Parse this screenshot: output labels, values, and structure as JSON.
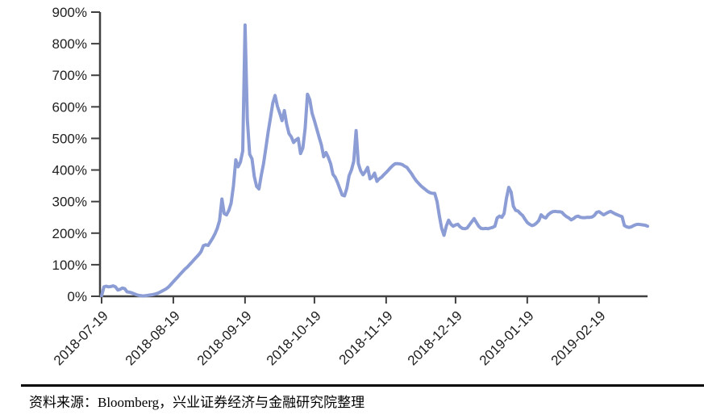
{
  "chart_data": {
    "type": "line",
    "title": "",
    "xlabel": "",
    "ylabel": "",
    "grid": false,
    "legend": "none",
    "y_axis": {
      "range": [
        0,
        900
      ],
      "tick_values": [
        0,
        100,
        200,
        300,
        400,
        500,
        600,
        700,
        800,
        900
      ],
      "tick_labels": [
        "0%",
        "100%",
        "200%",
        "300%",
        "400%",
        "500%",
        "600%",
        "700%",
        "800%",
        "900%"
      ]
    },
    "x_axis": {
      "start_date": "2018-07-19",
      "sampling": "daily",
      "tick_labels": [
        "2018-07-19",
        "2018-08-19",
        "2018-09-19",
        "2018-10-19",
        "2018-11-19",
        "2018-12-19",
        "2019-01-19",
        "2019-02-19"
      ],
      "tick_day_offsets": [
        0,
        31,
        62,
        92,
        123,
        153,
        184,
        215
      ]
    },
    "series": [
      {
        "name": "",
        "unit": "percent",
        "color": "#8C9DD6",
        "values": [
          2,
          30,
          32,
          30,
          31,
          33,
          30,
          20,
          22,
          26,
          24,
          14,
          13,
          11,
          8,
          5,
          3,
          2,
          1,
          2,
          3,
          4,
          5,
          7,
          9,
          12,
          16,
          20,
          24,
          30,
          38,
          46,
          54,
          62,
          70,
          78,
          86,
          92,
          100,
          108,
          116,
          124,
          132,
          142,
          160,
          163,
          161,
          172,
          184,
          198,
          215,
          240,
          308,
          262,
          258,
          272,
          295,
          350,
          432,
          410,
          425,
          460,
          859,
          560,
          450,
          435,
          380,
          348,
          340,
          382,
          420,
          470,
          520,
          565,
          612,
          636,
          602,
          580,
          556,
          588,
          545,
          515,
          505,
          487,
          495,
          500,
          452,
          470,
          532,
          640,
          622,
          580,
          556,
          530,
          504,
          480,
          442,
          455,
          440,
          420,
          386,
          377,
          360,
          340,
          321,
          318,
          342,
          382,
          400,
          428,
          525,
          420,
          397,
          385,
          395,
          408,
          372,
          378,
          390,
          364,
          372,
          377,
          385,
          392,
          400,
          408,
          415,
          420,
          420,
          419,
          417,
          412,
          408,
          398,
          388,
          376,
          366,
          358,
          350,
          344,
          338,
          332,
          328,
          326,
          326,
          300,
          255,
          215,
          193,
          222,
          241,
          228,
          222,
          226,
          228,
          220,
          215,
          214,
          216,
          226,
          236,
          246,
          234,
          222,
          215,
          214,
          215,
          214,
          216,
          218,
          222,
          248,
          254,
          250,
          262,
          310,
          345,
          330,
          285,
          272,
          270,
          262,
          256,
          244,
          234,
          228,
          224,
          226,
          232,
          240,
          258,
          251,
          248,
          258,
          264,
          268,
          269,
          268,
          268,
          266,
          258,
          252,
          248,
          242,
          246,
          252,
          254,
          250,
          249,
          249,
          250,
          250,
          251,
          256,
          266,
          268,
          263,
          258,
          262,
          266,
          269,
          265,
          261,
          258,
          255,
          252,
          224,
          220,
          218,
          220,
          224,
          227,
          228,
          227,
          226,
          225,
          222
        ]
      }
    ]
  },
  "footer": {
    "source_note": "资料来源：Bloomberg，兴业证券经济与金融研究院整理"
  },
  "colors": {
    "line": "#8C9DD6",
    "axis": "#404040",
    "text": "#1F1F1F",
    "divider": "#000000",
    "background": "#FFFFFF"
  }
}
